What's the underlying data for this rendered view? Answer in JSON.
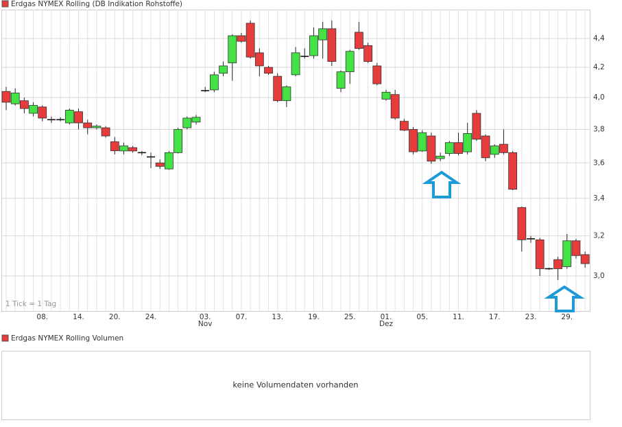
{
  "chart_data": [
    {
      "type": "candlestick",
      "name": "Erdgas NYMEX Rolling (DB Indikation Rohstoffe)",
      "note": "1 Tick = 1 Tag",
      "categories": [
        null,
        null,
        null,
        null,
        "08.",
        null,
        null,
        null,
        "14.",
        null,
        null,
        null,
        "20.",
        null,
        null,
        null,
        "24.",
        null,
        null,
        null,
        null,
        null,
        "03.",
        null,
        null,
        null,
        "07.",
        null,
        null,
        null,
        "13.",
        null,
        null,
        null,
        "19.",
        null,
        null,
        null,
        "25.",
        null,
        null,
        null,
        "01.",
        null,
        null,
        null,
        "05.",
        null,
        null,
        null,
        "11.",
        null,
        null,
        null,
        "17.",
        null,
        null,
        null,
        "23.",
        null,
        null,
        null,
        "29.",
        null,
        null
      ],
      "x_sublabels": [
        null,
        null,
        null,
        null,
        null,
        null,
        null,
        null,
        null,
        null,
        null,
        null,
        null,
        null,
        null,
        null,
        null,
        null,
        null,
        null,
        null,
        null,
        "Nov",
        null,
        null,
        null,
        null,
        null,
        null,
        null,
        null,
        null,
        null,
        null,
        null,
        null,
        null,
        null,
        null,
        null,
        null,
        null,
        "Dez",
        null,
        null,
        null,
        null,
        null,
        null,
        null,
        null,
        null,
        null,
        null,
        null,
        null,
        null,
        null,
        null,
        null,
        null,
        null,
        null,
        null,
        null
      ],
      "open": [
        4.04,
        3.96,
        3.98,
        3.9,
        3.94,
        3.86,
        3.86,
        3.84,
        3.91,
        3.84,
        3.81,
        3.81,
        3.725,
        3.67,
        3.69,
        3.66,
        3.635,
        3.6,
        3.565,
        3.66,
        3.81,
        3.845,
        4.04,
        4.05,
        4.16,
        4.23,
        4.42,
        4.51,
        4.3,
        4.2,
        4.14,
        3.98,
        4.15,
        4.27,
        4.28,
        4.39,
        4.47,
        4.06,
        4.17,
        4.445,
        4.35,
        4.21,
        3.99,
        4.02,
        3.85,
        3.8,
        3.67,
        3.76,
        3.625,
        3.655,
        3.72,
        3.665,
        3.9,
        3.76,
        3.65,
        3.71,
        3.66,
        3.35,
        3.18,
        3.18,
        3.035,
        3.08,
        3.045,
        3.175,
        3.105
      ],
      "high": [
        4.07,
        4.06,
        4.0,
        3.97,
        3.95,
        3.88,
        3.875,
        3.93,
        3.93,
        3.86,
        3.83,
        3.82,
        3.754,
        3.72,
        3.7,
        3.67,
        3.66,
        3.62,
        3.67,
        3.81,
        3.88,
        3.89,
        4.07,
        4.17,
        4.24,
        4.43,
        4.44,
        4.53,
        4.33,
        4.21,
        4.16,
        4.08,
        4.34,
        4.33,
        4.48,
        4.52,
        4.53,
        4.18,
        4.32,
        4.52,
        4.37,
        4.23,
        4.05,
        4.05,
        3.865,
        3.815,
        3.795,
        3.78,
        3.66,
        3.73,
        3.78,
        3.84,
        3.92,
        3.77,
        3.71,
        3.8,
        3.67,
        3.355,
        3.2,
        3.19,
        3.04,
        3.095,
        3.21,
        3.185,
        3.12
      ],
      "low": [
        3.92,
        3.95,
        3.9,
        3.88,
        3.85,
        3.84,
        3.85,
        3.83,
        3.8,
        3.77,
        3.8,
        3.75,
        3.65,
        3.65,
        3.66,
        3.645,
        3.57,
        3.565,
        3.56,
        3.655,
        3.8,
        3.83,
        4.035,
        4.035,
        4.14,
        4.11,
        4.37,
        4.26,
        4.14,
        4.15,
        3.97,
        3.94,
        4.14,
        4.26,
        4.26,
        4.26,
        4.21,
        4.035,
        4.09,
        4.32,
        4.23,
        4.08,
        3.98,
        3.86,
        3.79,
        3.65,
        3.665,
        3.595,
        3.61,
        3.64,
        3.645,
        3.65,
        3.73,
        3.61,
        3.63,
        3.65,
        3.445,
        3.12,
        3.165,
        3.0,
        3.03,
        2.98,
        3.035,
        3.085,
        3.04
      ],
      "close": [
        3.97,
        4.03,
        3.93,
        3.95,
        3.87,
        3.86,
        3.86,
        3.92,
        3.84,
        3.81,
        3.82,
        3.76,
        3.671,
        3.7,
        3.67,
        3.66,
        3.635,
        3.58,
        3.66,
        3.8,
        3.87,
        3.875,
        4.045,
        4.15,
        4.21,
        4.42,
        4.38,
        4.27,
        4.21,
        4.16,
        3.98,
        4.07,
        4.3,
        4.275,
        4.42,
        4.47,
        4.24,
        4.17,
        4.31,
        4.33,
        4.24,
        4.09,
        4.035,
        3.87,
        3.795,
        3.665,
        3.78,
        3.61,
        3.64,
        3.72,
        3.655,
        3.775,
        3.74,
        3.63,
        3.7,
        3.66,
        3.45,
        3.18,
        3.185,
        3.035,
        3.035,
        3.035,
        3.175,
        3.1,
        3.06
      ],
      "up_color": "#44e244",
      "down_color": "#e63c3c",
      "legend_color": "#e63c3c",
      "log_scale": true,
      "grid": true,
      "ylim": [
        2.835,
        4.61
      ],
      "yticks": [
        {
          "value": 3.0,
          "label": "3,0"
        },
        {
          "value": 3.2,
          "label": "3,2"
        },
        {
          "value": 3.4,
          "label": "3,4"
        },
        {
          "value": 3.6,
          "label": "3,6"
        },
        {
          "value": 3.8,
          "label": "3,8"
        },
        {
          "value": 4.0,
          "label": "4,0"
        },
        {
          "value": 4.2,
          "label": "4,2"
        },
        {
          "value": 4.4,
          "label": "4,4"
        }
      ]
    },
    {
      "type": "volume",
      "name": "Erdgas NYMEX Rolling Volumen",
      "legend_color": "#e63c3c",
      "message": "keine Volumendaten vorhanden"
    }
  ]
}
